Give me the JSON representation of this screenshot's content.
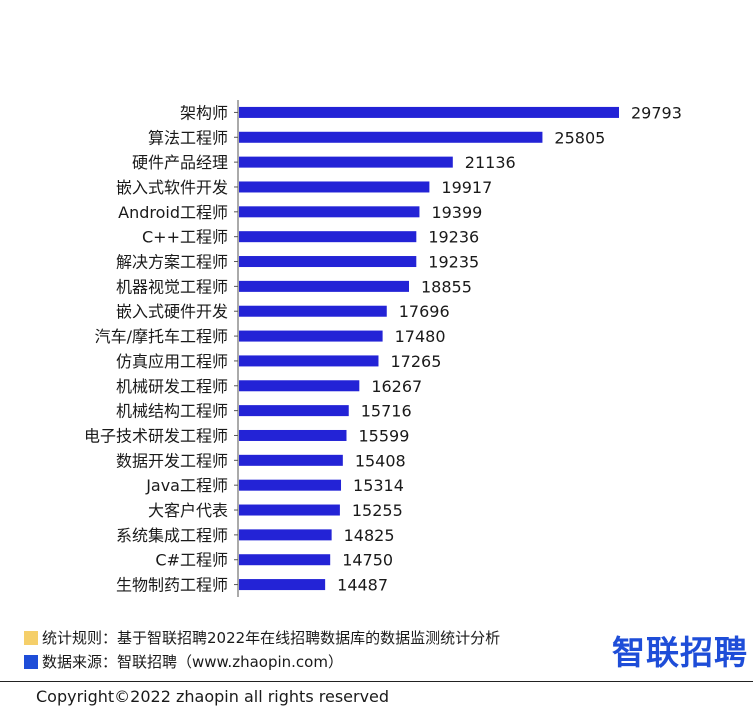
{
  "chart_data": {
    "type": "bar",
    "orientation": "horizontal",
    "categories": [
      "架构师",
      "算法工程师",
      "硬件产品经理",
      "嵌入式软件开发",
      "Android工程师",
      "C++工程师",
      "解决方案工程师",
      "机器视觉工程师",
      "嵌入式硬件开发",
      "汽车/摩托车工程师",
      "仿真应用工程师",
      "机械研发工程师",
      "机械结构工程师",
      "电子技术研发工程师",
      "数据开发工程师",
      "Java工程师",
      "大客户代表",
      "系统集成工程师",
      "C#工程师",
      "生物制药工程师"
    ],
    "values": [
      29793,
      25805,
      21136,
      19917,
      19399,
      19236,
      19235,
      18855,
      17696,
      17480,
      17265,
      16267,
      15716,
      15599,
      15408,
      15314,
      15255,
      14825,
      14750,
      14487
    ],
    "xlim": [
      10000,
      30000
    ],
    "bar_color": "#2323d6",
    "grid": false,
    "title": "",
    "xlabel": "",
    "ylabel": ""
  },
  "footer": {
    "rule": "统计规则：基于智联招聘2022年在线招聘数据库的数据监测统计分析",
    "rule_swatch_color": "#f5cf6a",
    "source": "数据来源：智联招聘（www.zhaopin.com）",
    "source_swatch_color": "#1e4dd8",
    "logo": "智联招聘",
    "copyright": "Copyright©2022 zhaopin all rights reserved"
  }
}
